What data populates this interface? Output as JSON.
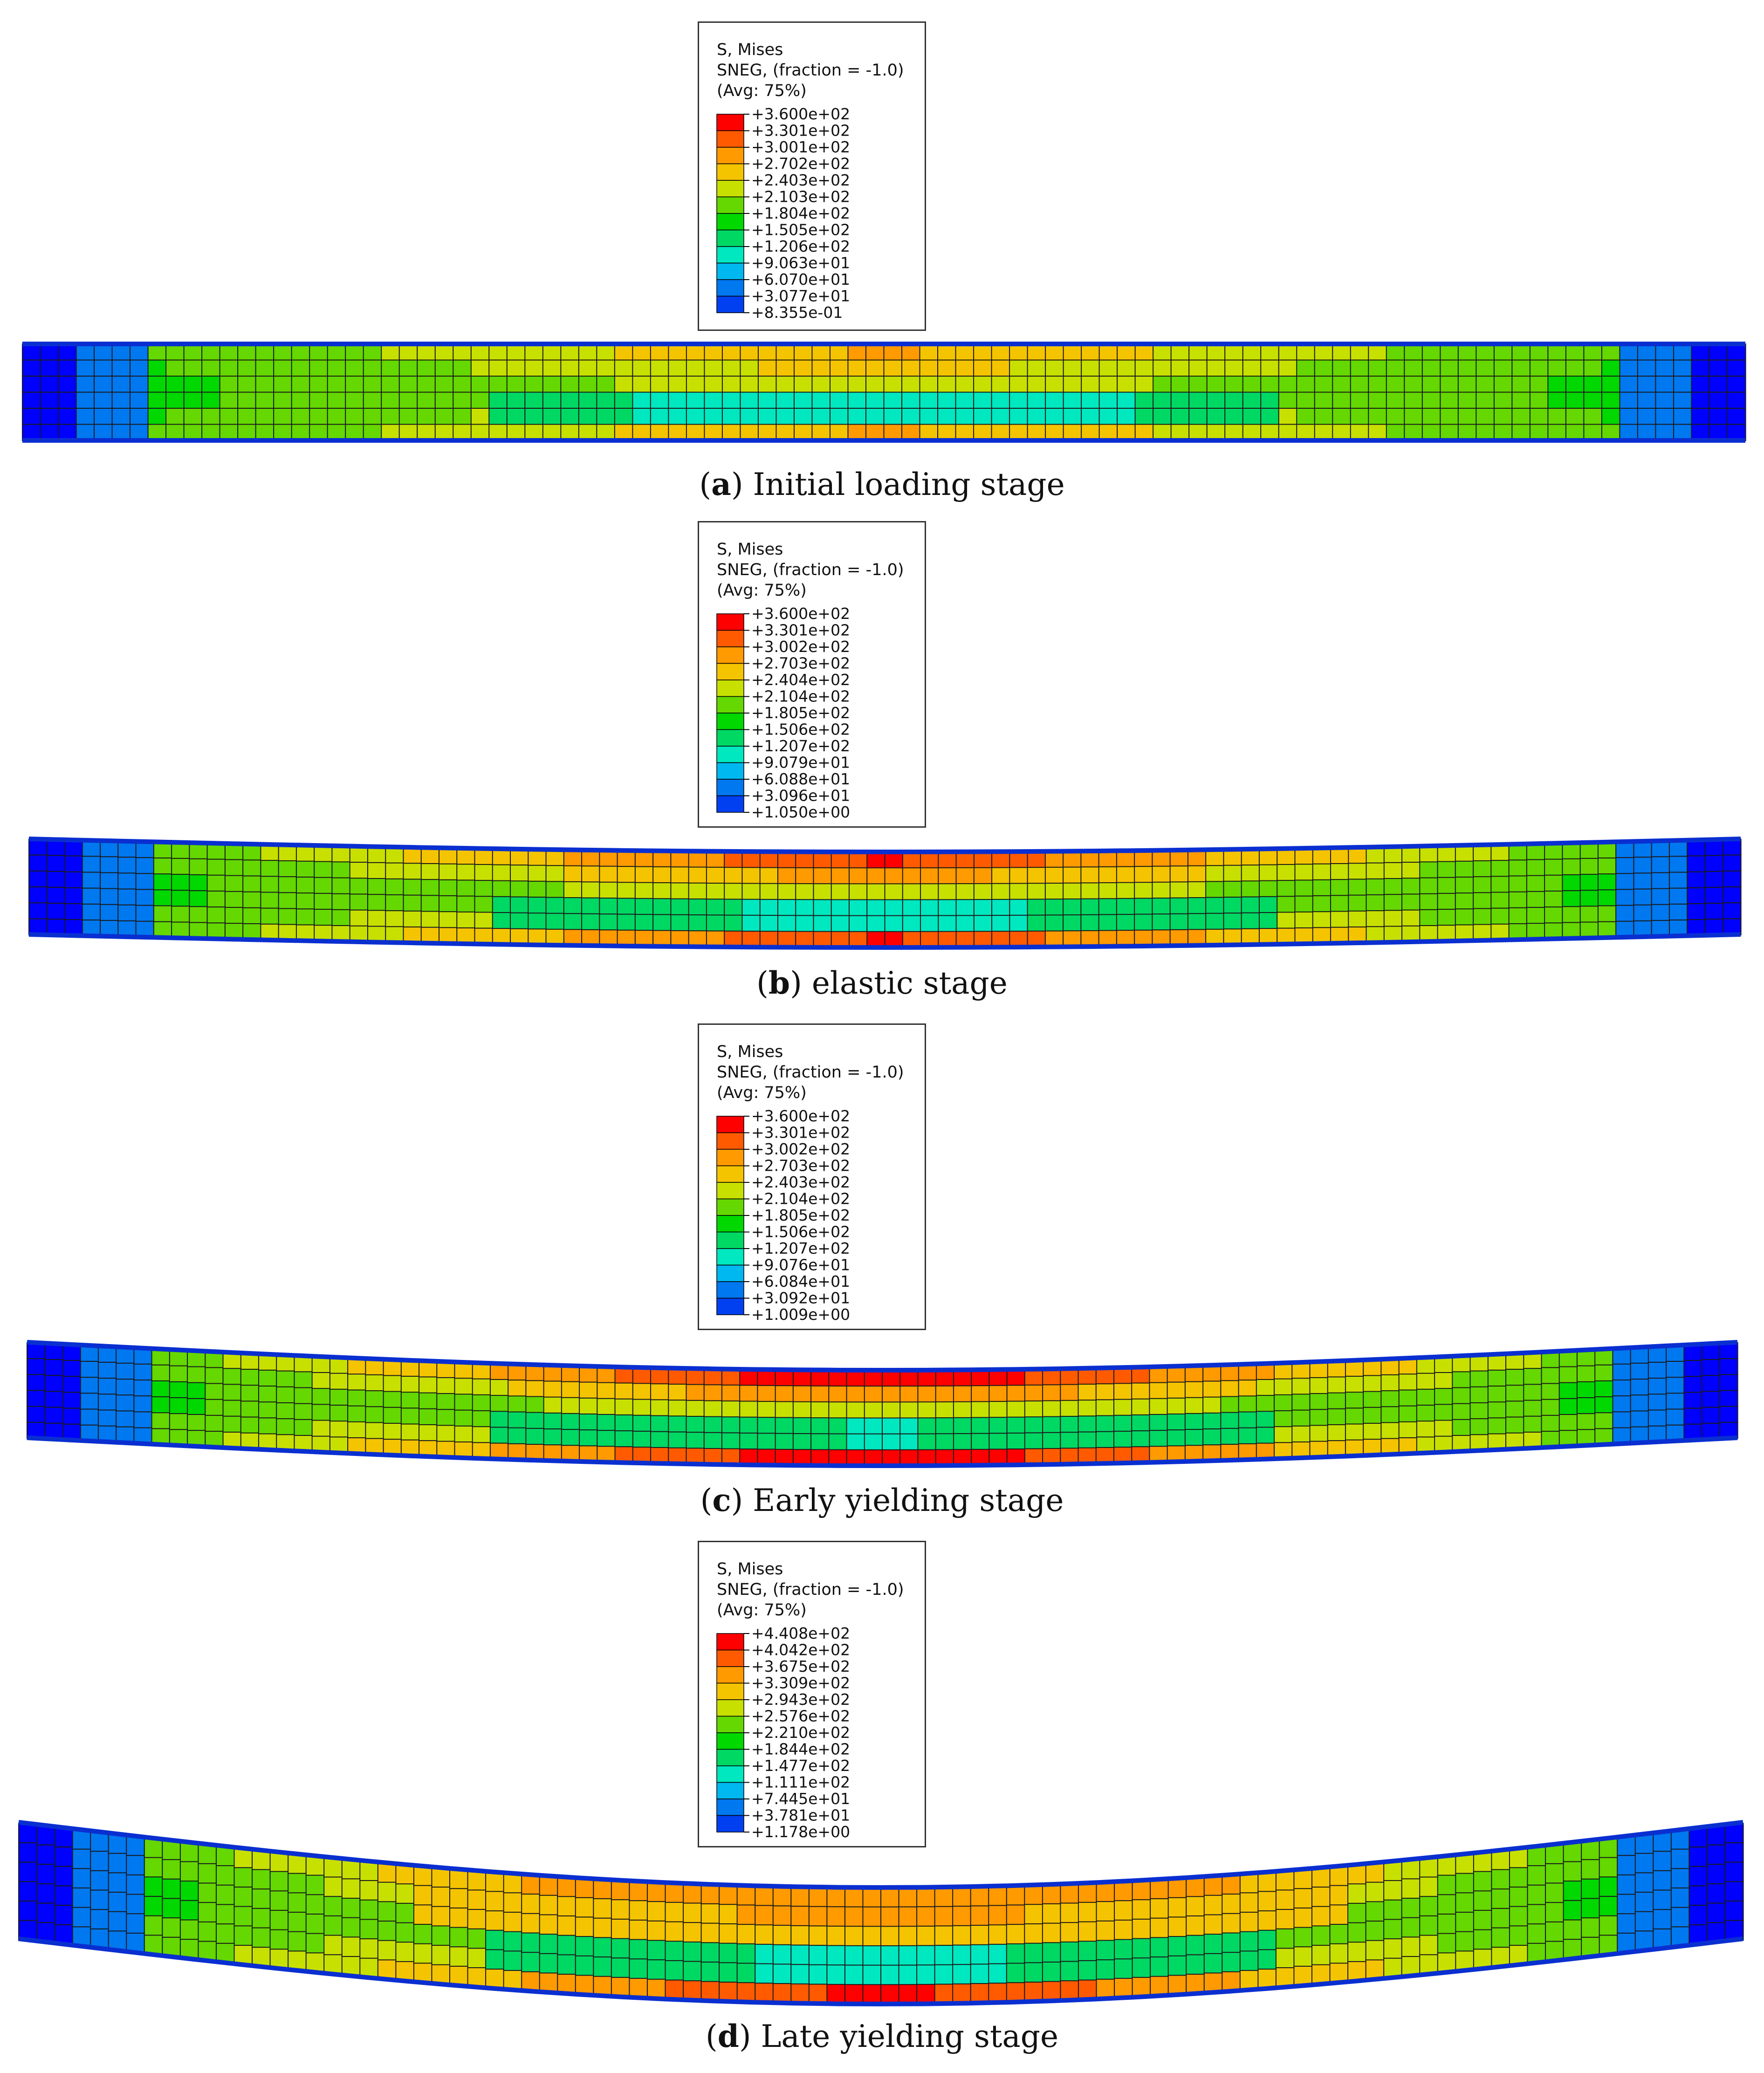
{
  "panels": [
    {
      "id": "a",
      "legend": {
        "title": "S, Mises",
        "line2": "SNEG, (fraction = -1.0)",
        "line3": "(Avg: 75%)",
        "values": [
          "+3.600e+02",
          "+3.301e+02",
          "+3.001e+02",
          "+2.702e+02",
          "+2.403e+02",
          "+2.103e+02",
          "+1.804e+02",
          "+1.505e+02",
          "+1.206e+02",
          "+9.063e+01",
          "+6.070e+01",
          "+3.077e+01",
          "+8.355e-01"
        ]
      },
      "caption": {
        "letter": "a",
        "text": "Initial loading stage"
      }
    },
    {
      "id": "b",
      "legend": {
        "title": "S, Mises",
        "line2": "SNEG, (fraction = -1.0)",
        "line3": "(Avg: 75%)",
        "values": [
          "+3.600e+02",
          "+3.301e+02",
          "+3.002e+02",
          "+2.703e+02",
          "+2.404e+02",
          "+2.104e+02",
          "+1.805e+02",
          "+1.506e+02",
          "+1.207e+02",
          "+9.079e+01",
          "+6.088e+01",
          "+3.096e+01",
          "+1.050e+00"
        ]
      },
      "caption": {
        "letter": "b",
        "text": "elastic stage"
      }
    },
    {
      "id": "c",
      "legend": {
        "title": "S, Mises",
        "line2": "SNEG, (fraction = -1.0)",
        "line3": "(Avg: 75%)",
        "values": [
          "+3.600e+02",
          "+3.301e+02",
          "+3.002e+02",
          "+2.703e+02",
          "+2.403e+02",
          "+2.104e+02",
          "+1.805e+02",
          "+1.506e+02",
          "+1.207e+02",
          "+9.076e+01",
          "+6.084e+01",
          "+3.092e+01",
          "+1.009e+00"
        ]
      },
      "caption": {
        "letter": "c",
        "text": "Early yielding stage"
      }
    },
    {
      "id": "d",
      "legend": {
        "title": "S, Mises",
        "line2": "SNEG, (fraction = -1.0)",
        "line3": "(Avg: 75%)",
        "values": [
          "+4.408e+02",
          "+4.042e+02",
          "+3.675e+02",
          "+3.309e+02",
          "+2.943e+02",
          "+2.576e+02",
          "+2.210e+02",
          "+1.844e+02",
          "+1.477e+02",
          "+1.111e+02",
          "+7.445e+01",
          "+3.781e+01",
          "+1.178e+00"
        ]
      },
      "caption": {
        "letter": "d",
        "text": "Late yielding stage"
      }
    }
  ],
  "colors": {
    "contour_scale": [
      "#ff0000",
      "#ff5a00",
      "#ff9a00",
      "#f5c400",
      "#c8e000",
      "#64d800",
      "#00d800",
      "#00d864",
      "#00e8c0",
      "#00b8f0",
      "#0078f0",
      "#0040f0",
      "#0000ff"
    ]
  }
}
